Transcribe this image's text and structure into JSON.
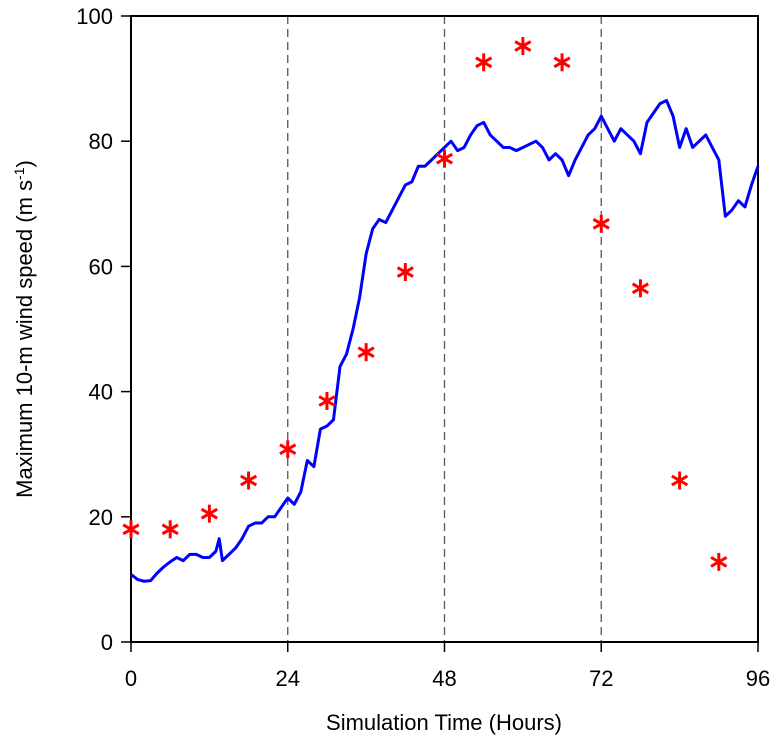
{
  "chart_data": {
    "type": "line-scatter",
    "xlabel": "Simulation Time (Hours)",
    "ylabel": {
      "text": "Maximum 10-m wind speed (m s",
      "sup": "-1",
      "tail": ")"
    },
    "xlim": [
      0,
      96
    ],
    "xticks": [
      0,
      24,
      48,
      72,
      96
    ],
    "ylim": [
      0,
      100
    ],
    "yticks": [
      0,
      20,
      40,
      60,
      80,
      100
    ],
    "vlines": [
      24,
      48,
      72
    ],
    "series": [
      {
        "kind": "line",
        "color": "#0000ff",
        "x": [
          0,
          1,
          2,
          3,
          4,
          5,
          6,
          7,
          8,
          9,
          10,
          11,
          12,
          13,
          13.5,
          14,
          15,
          16,
          17,
          18,
          19,
          20,
          21,
          22,
          23,
          24,
          25,
          26,
          27,
          28,
          29,
          30,
          31,
          32,
          33,
          34,
          35,
          36,
          37,
          38,
          39,
          40,
          41,
          42,
          43,
          44,
          45,
          46,
          47,
          48,
          49,
          50,
          51,
          52,
          53,
          54,
          55,
          56,
          57,
          58,
          59,
          60,
          61,
          62,
          63,
          64,
          65,
          66,
          67,
          68,
          69,
          70,
          71,
          72,
          73,
          74,
          75,
          76,
          77,
          78,
          79,
          80,
          81,
          82,
          83,
          84,
          85,
          86,
          87,
          88,
          89,
          90,
          91,
          92,
          93,
          94,
          95,
          96
        ],
        "values": [
          10.8,
          10,
          9.7,
          9.8,
          11,
          12,
          12.8,
          13.5,
          13,
          14,
          14,
          13.5,
          13.5,
          14.5,
          16.5,
          13,
          14,
          15,
          16.5,
          18.5,
          19,
          19,
          20,
          20,
          21.5,
          23,
          22,
          24,
          29,
          28,
          34,
          34.5,
          35.5,
          44,
          46,
          50,
          55,
          62,
          66,
          67.5,
          67,
          69,
          71,
          73,
          73.5,
          76,
          76,
          77,
          78,
          79,
          80,
          78.5,
          79,
          81,
          82.5,
          83,
          81,
          80,
          79,
          79,
          78.5,
          79,
          79.5,
          80,
          79,
          77,
          78,
          77,
          74.5,
          77,
          79,
          81,
          82,
          84,
          82,
          80,
          82,
          81,
          80,
          78,
          83,
          84.5,
          86,
          86.5,
          84,
          79,
          82,
          79,
          80,
          81,
          79,
          77,
          68,
          69,
          70.5,
          69.5,
          73,
          76
        ]
      },
      {
        "kind": "scatter",
        "color": "#ff0000",
        "x": [
          0,
          6,
          12,
          18,
          24,
          30,
          36,
          42,
          48,
          54,
          60,
          66,
          72,
          78,
          84,
          90
        ],
        "values": [
          18,
          18,
          20.5,
          25.8,
          30.8,
          38.5,
          46.3,
          59.1,
          77.2,
          92.6,
          95.2,
          92.6,
          66.8,
          56.5,
          25.8,
          12.8
        ]
      }
    ]
  }
}
